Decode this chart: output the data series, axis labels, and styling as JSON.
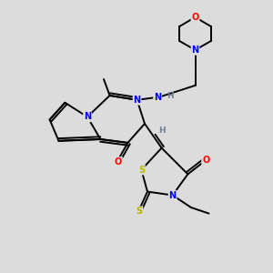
{
  "bg_color": "#dcdcdc",
  "bond_color": "#000000",
  "N_color": "#0000ff",
  "O_color": "#ff0000",
  "S_color": "#b8b800",
  "H_color": "#708090",
  "font_size": 7.0,
  "lw": 1.4,
  "xlim": [
    0,
    10
  ],
  "ylim": [
    0,
    10
  ]
}
